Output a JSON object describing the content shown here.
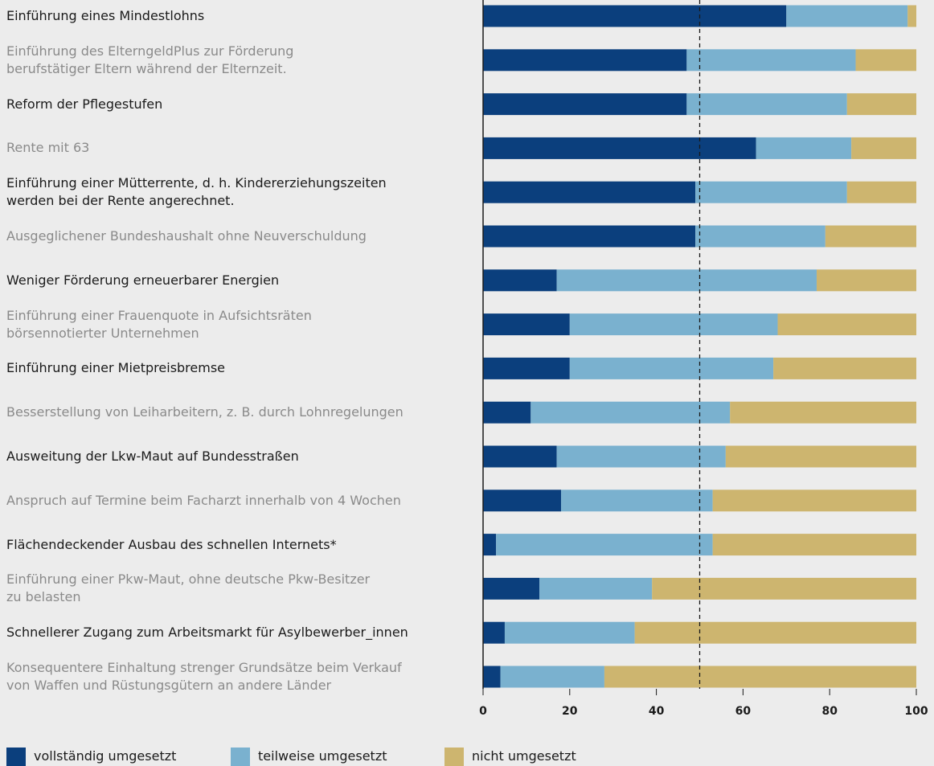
{
  "chart_data": {
    "type": "stacked-barh",
    "categories": [
      "Einführung eines Mindestlohns",
      "Einführung des ElterngeldPlus zur Förderung\nberufstätiger Eltern während der Elternzeit.",
      "Reform der Pflegestufen",
      "Rente mit 63",
      "Einführung einer Mütterrente, d. h. Kindererziehungszeiten\nwerden bei der Rente angerechnet.",
      "Ausgeglichener Bundeshaushalt ohne Neuverschuldung",
      "Weniger Förderung erneuerbarer Energien",
      "Einführung einer Frauenquote in Aufsichtsräten\nbörsennotierter Unternehmen",
      "Einführung einer Mietpreisbremse",
      "Besserstellung von Leiharbeitern, z. B. durch Lohnregelungen",
      "Ausweitung der Lkw-Maut auf Bundesstraßen",
      "Anspruch auf Termine beim Facharzt innerhalb von 4 Wochen",
      "Flächendeckender Ausbau des schnellen Internets*",
      "Einführung einer Pkw-Maut, ohne deutsche Pkw-Besitzer\nzu belasten",
      "Schnellerer Zugang zum Arbeitsmarkt für Asylbewerber_innen",
      "Konsequentere Einhaltung strenger Grundsätze beim Verkauf\nvon Waffen und Rüstungsgütern an andere Länder"
    ],
    "series": [
      {
        "name": "vollständig umgesetzt",
        "color": "#0b3f7d",
        "values": [
          70,
          47,
          47,
          63,
          49,
          49,
          17,
          20,
          20,
          11,
          17,
          18,
          3,
          13,
          5,
          4
        ]
      },
      {
        "name": "teilweise umgesetzt",
        "color": "#7ab1cf",
        "values": [
          28,
          39,
          37,
          22,
          35,
          30,
          60,
          48,
          47,
          46,
          39,
          35,
          50,
          26,
          30,
          24
        ]
      },
      {
        "name": "nicht umgesetzt",
        "color": "#cdb56f",
        "values": [
          2,
          14,
          16,
          15,
          16,
          21,
          23,
          32,
          33,
          43,
          44,
          47,
          47,
          61,
          65,
          72
        ]
      }
    ],
    "xlim": [
      0,
      100
    ],
    "xticks": [
      0,
      20,
      40,
      60,
      80,
      100
    ],
    "reference_line": 50
  }
}
